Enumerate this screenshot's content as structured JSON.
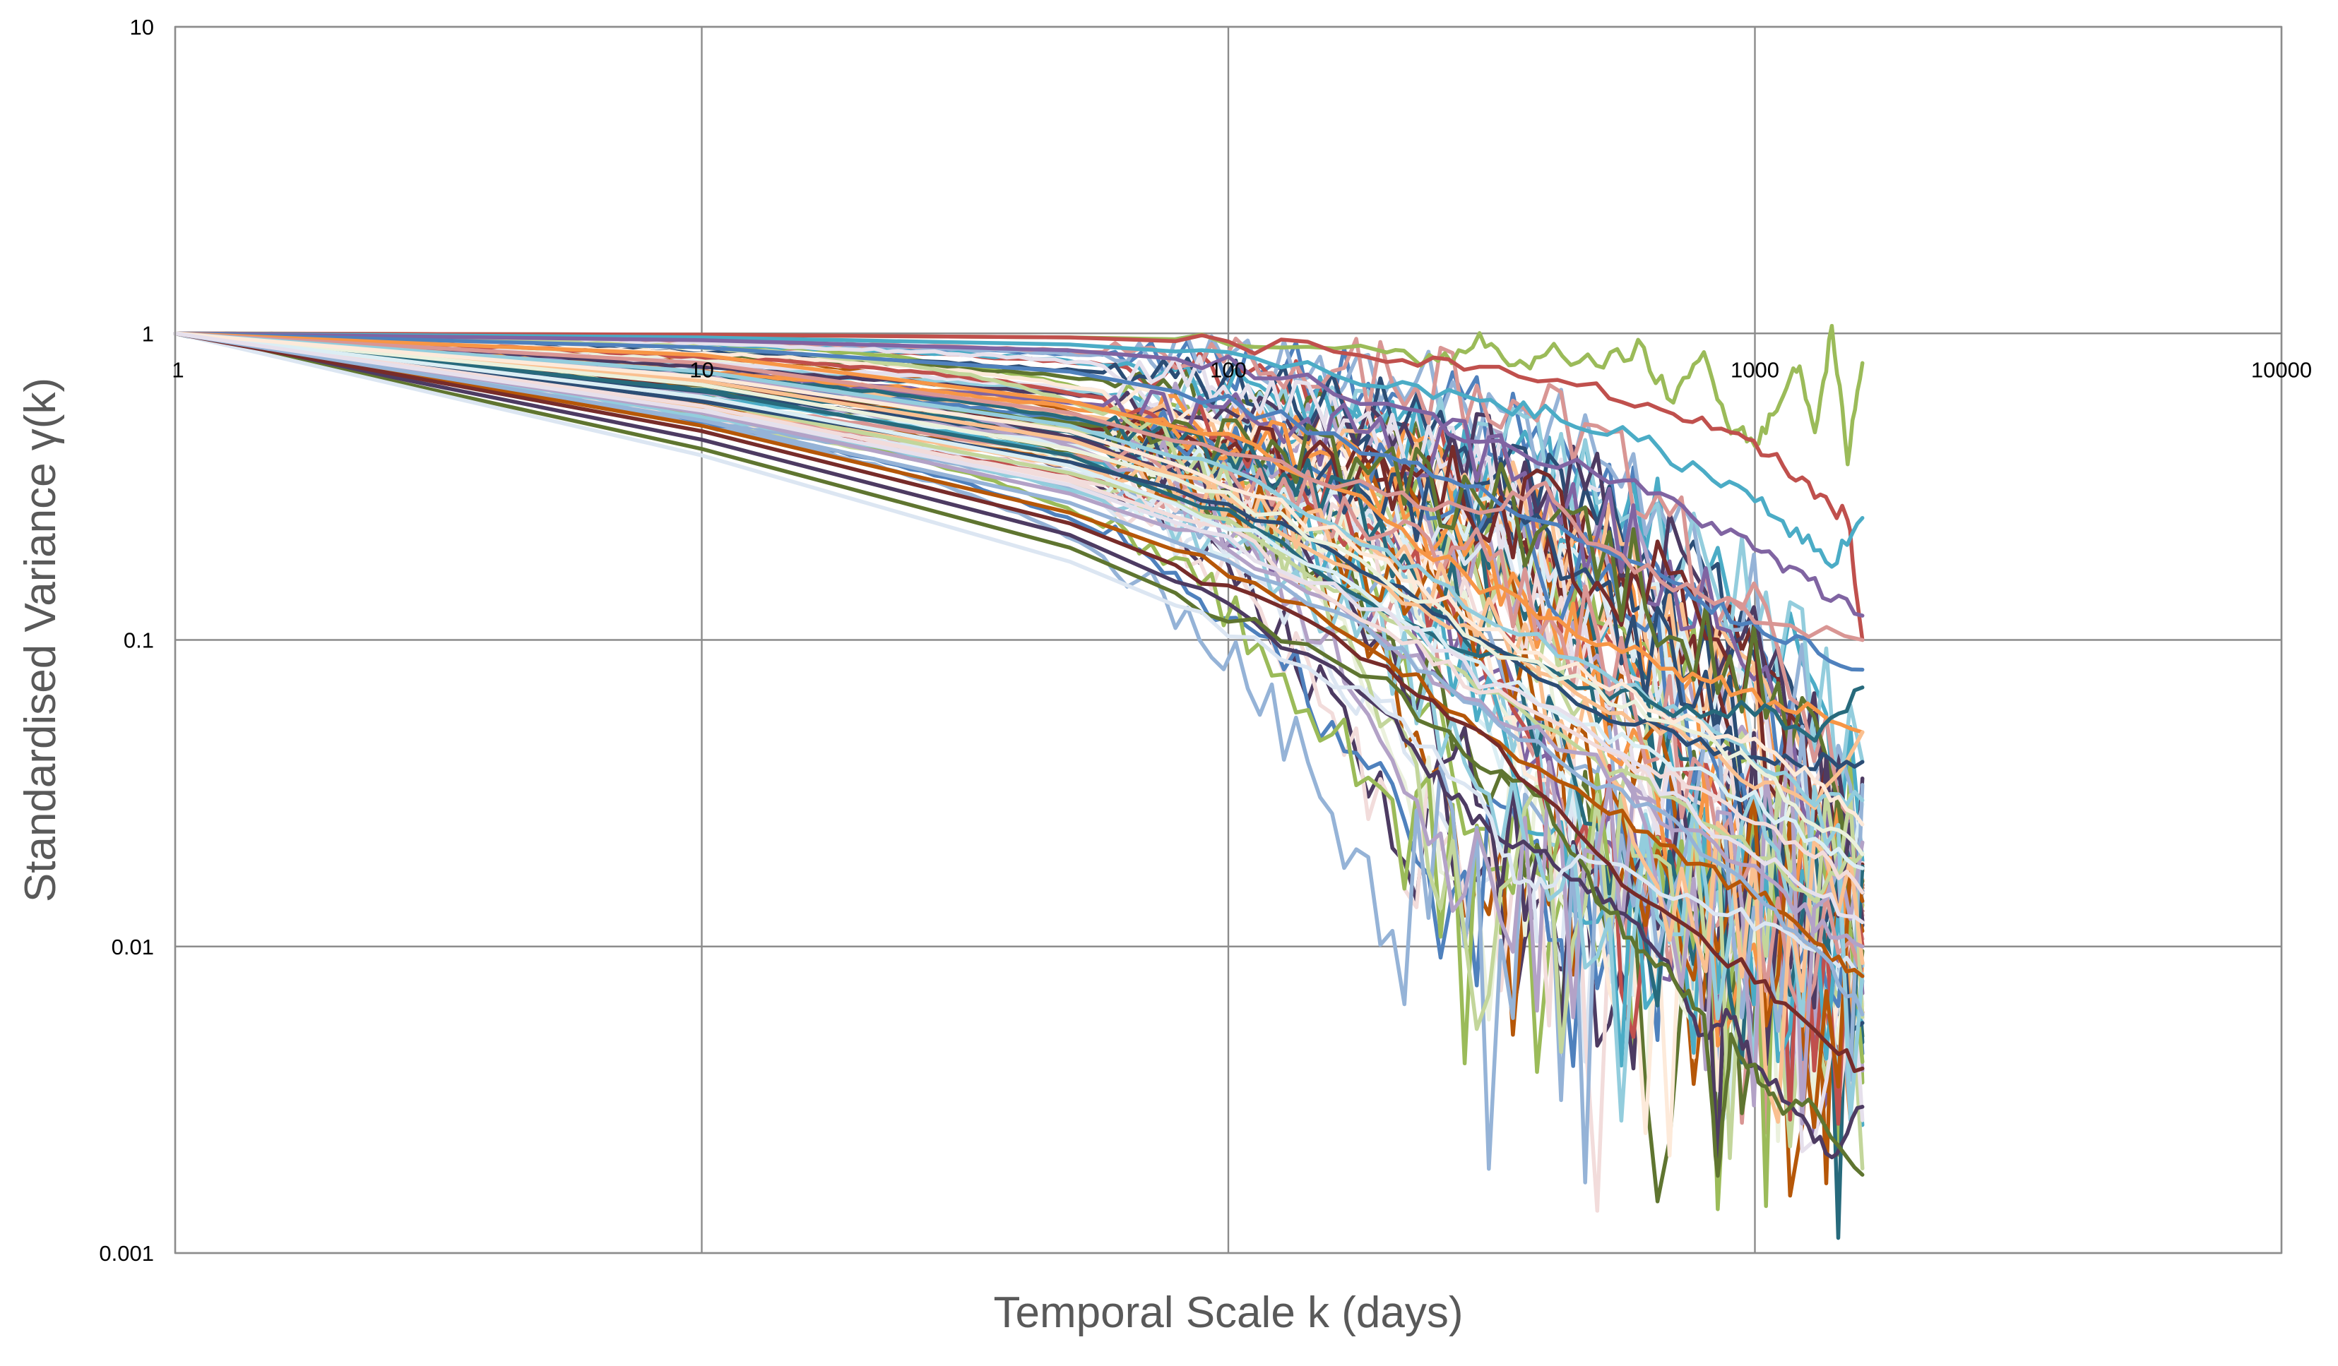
{
  "chart_data": {
    "type": "line",
    "title": "",
    "xlabel": "Temporal Scale k (days)",
    "ylabel": "Standardised Variance γ(k)",
    "x_scale": "log",
    "y_scale": "log",
    "xlim": [
      1,
      10000
    ],
    "ylim": [
      0.001,
      10
    ],
    "x_ticks": [
      "1",
      "10",
      "100",
      "1000",
      "10000"
    ],
    "y_ticks": [
      "0.001",
      "0.01",
      "0.1",
      "1",
      "10"
    ],
    "grid": true,
    "legend": "none",
    "palette": [
      "#4f81bd",
      "#c0504d",
      "#9bbb59",
      "#8064a2",
      "#4bacc6",
      "#f79646",
      "#2c4d75",
      "#772c2a",
      "#5f7530",
      "#4d3b62",
      "#276a7c",
      "#b65708",
      "#95b3d7",
      "#d99694",
      "#c3d69b",
      "#b3a2c7",
      "#93cddd",
      "#fac090",
      "#dce6f2",
      "#f2dcdb",
      "#ebf1dd",
      "#e6e0ec",
      "#dbeef4",
      "#fdeada"
    ],
    "series_count": 90,
    "x_max": 1600,
    "series": [
      {
        "color": "#9bbb59",
        "points": [
          [
            1,
            1
          ],
          [
            10,
            0.99
          ],
          [
            50,
            0.97
          ],
          [
            100,
            0.95
          ],
          [
            200,
            0.9
          ],
          [
            250,
            0.8
          ],
          [
            300,
            0.95
          ],
          [
            350,
            0.75
          ],
          [
            400,
            0.9
          ],
          [
            500,
            0.78
          ],
          [
            600,
            0.9
          ],
          [
            700,
            0.6
          ],
          [
            800,
            0.85
          ],
          [
            900,
            0.5
          ],
          [
            1000,
            0.45
          ],
          [
            1100,
            0.55
          ],
          [
            1200,
            0.8
          ],
          [
            1300,
            0.5
          ],
          [
            1400,
            1.0
          ],
          [
            1500,
            0.4
          ],
          [
            1600,
            0.8
          ]
        ]
      },
      {
        "color": "#c0504d",
        "points": [
          [
            1,
            1
          ],
          [
            10,
            0.99
          ],
          [
            50,
            0.97
          ],
          [
            100,
            0.93
          ],
          [
            200,
            0.85
          ],
          [
            300,
            0.75
          ],
          [
            500,
            0.65
          ],
          [
            700,
            0.55
          ],
          [
            900,
            0.45
          ],
          [
            1100,
            0.4
          ],
          [
            1300,
            0.3
          ],
          [
            1500,
            0.25
          ],
          [
            1600,
            0.1
          ]
        ]
      },
      {
        "color": "#4bacc6",
        "points": [
          [
            1,
            1
          ],
          [
            10,
            0.97
          ],
          [
            50,
            0.92
          ],
          [
            100,
            0.85
          ],
          [
            200,
            0.7
          ],
          [
            300,
            0.6
          ],
          [
            400,
            0.55
          ],
          [
            600,
            0.45
          ],
          [
            800,
            0.35
          ],
          [
            1000,
            0.3
          ],
          [
            1200,
            0.22
          ],
          [
            1400,
            0.18
          ],
          [
            1600,
            0.25
          ]
        ]
      },
      {
        "color": "#8064a2",
        "points": [
          [
            1,
            1
          ],
          [
            10,
            0.95
          ],
          [
            50,
            0.88
          ],
          [
            100,
            0.8
          ],
          [
            200,
            0.6
          ],
          [
            300,
            0.45
          ],
          [
            500,
            0.35
          ],
          [
            700,
            0.28
          ],
          [
            900,
            0.22
          ],
          [
            1100,
            0.18
          ],
          [
            1300,
            0.15
          ],
          [
            1600,
            0.12
          ]
        ]
      },
      {
        "color": "#4f81bd",
        "points": [
          [
            1,
            1
          ],
          [
            10,
            0.9
          ],
          [
            50,
            0.75
          ],
          [
            100,
            0.6
          ],
          [
            200,
            0.4
          ],
          [
            300,
            0.3
          ],
          [
            500,
            0.2
          ],
          [
            700,
            0.15
          ],
          [
            900,
            0.12
          ],
          [
            1200,
            0.1
          ],
          [
            1600,
            0.08
          ]
        ]
      },
      {
        "color": "#f79646",
        "points": [
          [
            1,
            1
          ],
          [
            10,
            0.85
          ],
          [
            50,
            0.6
          ],
          [
            100,
            0.45
          ],
          [
            200,
            0.25
          ],
          [
            300,
            0.15
          ],
          [
            500,
            0.1
          ],
          [
            700,
            0.08
          ],
          [
            900,
            0.07
          ],
          [
            1200,
            0.06
          ],
          [
            1600,
            0.05
          ]
        ]
      },
      {
        "color": "#d99694",
        "points": [
          [
            1,
            1
          ],
          [
            10,
            0.8
          ],
          [
            50,
            0.55
          ],
          [
            100,
            0.4
          ],
          [
            200,
            0.3
          ],
          [
            300,
            0.25
          ],
          [
            400,
            0.32
          ],
          [
            500,
            0.2
          ],
          [
            700,
            0.15
          ],
          [
            1000,
            0.12
          ],
          [
            1600,
            0.1
          ]
        ]
      },
      {
        "color": "#4d3b62",
        "points": [
          [
            1,
            1
          ],
          [
            10,
            0.45
          ],
          [
            50,
            0.22
          ],
          [
            100,
            0.13
          ],
          [
            200,
            0.06
          ],
          [
            250,
            0.035
          ],
          [
            300,
            0.025
          ],
          [
            400,
            0.02
          ],
          [
            500,
            0.015
          ],
          [
            600,
            0.012
          ],
          [
            700,
            0.008
          ],
          [
            800,
            0.005
          ],
          [
            900,
            0.006
          ],
          [
            1000,
            0.004
          ],
          [
            1200,
            0.003
          ],
          [
            1400,
            0.002
          ],
          [
            1600,
            0.003
          ]
        ]
      },
      {
        "color": "#5f7530",
        "points": [
          [
            1,
            1
          ],
          [
            10,
            0.42
          ],
          [
            50,
            0.2
          ],
          [
            100,
            0.12
          ],
          [
            200,
            0.07
          ],
          [
            300,
            0.04
          ],
          [
            400,
            0.03
          ],
          [
            500,
            0.015
          ],
          [
            600,
            0.01
          ],
          [
            700,
            0.008
          ],
          [
            800,
            0.006
          ],
          [
            850,
            0.0018
          ],
          [
            900,
            0.005
          ],
          [
            1000,
            0.004
          ],
          [
            1100,
            0.003
          ],
          [
            1300,
            0.003
          ],
          [
            1600,
            0.0018
          ]
        ]
      },
      {
        "color": "#dce6f2",
        "points": [
          [
            1,
            1
          ],
          [
            10,
            0.4
          ],
          [
            50,
            0.18
          ],
          [
            100,
            0.11
          ],
          [
            200,
            0.06
          ],
          [
            300,
            0.03
          ],
          [
            350,
            0.017
          ],
          [
            400,
            0.016
          ],
          [
            500,
            0.02
          ],
          [
            700,
            0.015
          ],
          [
            1000,
            0.012
          ],
          [
            1300,
            0.01
          ],
          [
            1600,
            0.008
          ]
        ]
      },
      {
        "color": "#c3d69b",
        "points": [
          [
            1,
            1
          ],
          [
            10,
            0.6
          ],
          [
            50,
            0.35
          ],
          [
            100,
            0.25
          ],
          [
            200,
            0.12
          ],
          [
            300,
            0.07
          ],
          [
            500,
            0.04
          ],
          [
            700,
            0.03
          ],
          [
            1000,
            0.02
          ],
          [
            1300,
            0.015
          ],
          [
            1600,
            0.02
          ]
        ]
      },
      {
        "color": "#fac090",
        "points": [
          [
            1,
            1
          ],
          [
            10,
            0.7
          ],
          [
            50,
            0.45
          ],
          [
            100,
            0.3
          ],
          [
            200,
            0.15
          ],
          [
            300,
            0.1
          ],
          [
            500,
            0.06
          ],
          [
            700,
            0.05
          ],
          [
            1000,
            0.035
          ],
          [
            1300,
            0.03
          ],
          [
            1600,
            0.05
          ]
        ]
      },
      {
        "color": "#93cddd",
        "points": [
          [
            1,
            1
          ],
          [
            10,
            0.75
          ],
          [
            50,
            0.5
          ],
          [
            100,
            0.35
          ],
          [
            200,
            0.2
          ],
          [
            300,
            0.12
          ],
          [
            500,
            0.08
          ],
          [
            700,
            0.06
          ],
          [
            1000,
            0.04
          ],
          [
            1300,
            0.03
          ],
          [
            1600,
            0.03
          ]
        ]
      },
      {
        "color": "#b3a2c7",
        "points": [
          [
            1,
            1
          ],
          [
            10,
            0.55
          ],
          [
            50,
            0.3
          ],
          [
            100,
            0.2
          ],
          [
            200,
            0.1
          ],
          [
            300,
            0.06
          ],
          [
            500,
            0.04
          ],
          [
            700,
            0.025
          ],
          [
            1000,
            0.018
          ],
          [
            1300,
            0.012
          ],
          [
            1600,
            0.01
          ]
        ]
      },
      {
        "color": "#276a7c",
        "points": [
          [
            1,
            1
          ],
          [
            10,
            0.65
          ],
          [
            50,
            0.4
          ],
          [
            100,
            0.25
          ],
          [
            200,
            0.12
          ],
          [
            300,
            0.09
          ],
          [
            500,
            0.07
          ],
          [
            700,
            0.06
          ],
          [
            1000,
            0.06
          ],
          [
            1300,
            0.05
          ],
          [
            1600,
            0.07
          ]
        ]
      },
      {
        "color": "#b65708",
        "points": [
          [
            1,
            1
          ],
          [
            10,
            0.5
          ],
          [
            50,
            0.26
          ],
          [
            100,
            0.17
          ],
          [
            200,
            0.09
          ],
          [
            300,
            0.05
          ],
          [
            500,
            0.03
          ],
          [
            700,
            0.02
          ],
          [
            1000,
            0.015
          ],
          [
            1300,
            0.01
          ],
          [
            1600,
            0.008
          ]
        ]
      },
      {
        "color": "#772c2a",
        "points": [
          [
            1,
            1
          ],
          [
            10,
            0.48
          ],
          [
            50,
            0.24
          ],
          [
            100,
            0.15
          ],
          [
            200,
            0.08
          ],
          [
            300,
            0.05
          ],
          [
            500,
            0.02
          ],
          [
            700,
            0.012
          ],
          [
            1000,
            0.008
          ],
          [
            1300,
            0.005
          ],
          [
            1600,
            0.004
          ]
        ]
      },
      {
        "color": "#2c4d75",
        "points": [
          [
            1,
            1
          ],
          [
            10,
            0.6
          ],
          [
            50,
            0.38
          ],
          [
            100,
            0.28
          ],
          [
            200,
            0.15
          ],
          [
            300,
            0.1
          ],
          [
            500,
            0.06
          ],
          [
            700,
            0.05
          ],
          [
            1000,
            0.04
          ],
          [
            1300,
            0.04
          ],
          [
            1600,
            0.04
          ]
        ]
      },
      {
        "color": "#95b3d7",
        "points": [
          [
            1,
            1
          ],
          [
            10,
            0.52
          ],
          [
            50,
            0.28
          ],
          [
            100,
            0.18
          ],
          [
            200,
            0.1
          ],
          [
            300,
            0.06
          ],
          [
            500,
            0.035
          ],
          [
            700,
            0.025
          ],
          [
            1000,
            0.015
          ],
          [
            1300,
            0.01
          ],
          [
            1600,
            0.006
          ]
        ]
      },
      {
        "color": "#f2dcdb",
        "points": [
          [
            1,
            1
          ],
          [
            10,
            0.58
          ],
          [
            50,
            0.33
          ],
          [
            100,
            0.22
          ],
          [
            200,
            0.11
          ],
          [
            300,
            0.07
          ],
          [
            500,
            0.045
          ],
          [
            700,
            0.035
          ],
          [
            1000,
            0.025
          ],
          [
            1300,
            0.02
          ],
          [
            1600,
            0.015
          ]
        ]
      },
      {
        "color": "#ebf1dd",
        "points": [
          [
            1,
            1
          ],
          [
            10,
            0.68
          ],
          [
            50,
            0.42
          ],
          [
            100,
            0.3
          ],
          [
            200,
            0.16
          ],
          [
            300,
            0.1
          ],
          [
            500,
            0.07
          ],
          [
            700,
            0.05
          ],
          [
            1000,
            0.04
          ],
          [
            1300,
            0.025
          ],
          [
            1600,
            0.02
          ]
        ]
      },
      {
        "color": "#dbeef4",
        "points": [
          [
            1,
            1
          ],
          [
            10,
            0.62
          ],
          [
            50,
            0.37
          ],
          [
            100,
            0.24
          ],
          [
            200,
            0.13
          ],
          [
            300,
            0.08
          ],
          [
            500,
            0.05
          ],
          [
            700,
            0.04
          ],
          [
            1000,
            0.03
          ],
          [
            1300,
            0.022
          ],
          [
            1600,
            0.018
          ]
        ]
      },
      {
        "color": "#fdeada",
        "points": [
          [
            1,
            1
          ],
          [
            10,
            0.72
          ],
          [
            50,
            0.48
          ],
          [
            100,
            0.33
          ],
          [
            200,
            0.18
          ],
          [
            300,
            0.11
          ],
          [
            500,
            0.075
          ],
          [
            700,
            0.055
          ],
          [
            1000,
            0.045
          ],
          [
            1300,
            0.035
          ],
          [
            1600,
            0.025
          ]
        ]
      },
      {
        "color": "#e6e0ec",
        "points": [
          [
            1,
            1
          ],
          [
            10,
            0.56
          ],
          [
            50,
            0.32
          ],
          [
            100,
            0.21
          ],
          [
            200,
            0.12
          ],
          [
            300,
            0.075
          ],
          [
            500,
            0.05
          ],
          [
            700,
            0.03
          ],
          [
            1000,
            0.02
          ],
          [
            1300,
            0.015
          ],
          [
            1600,
            0.012
          ]
        ]
      }
    ]
  }
}
